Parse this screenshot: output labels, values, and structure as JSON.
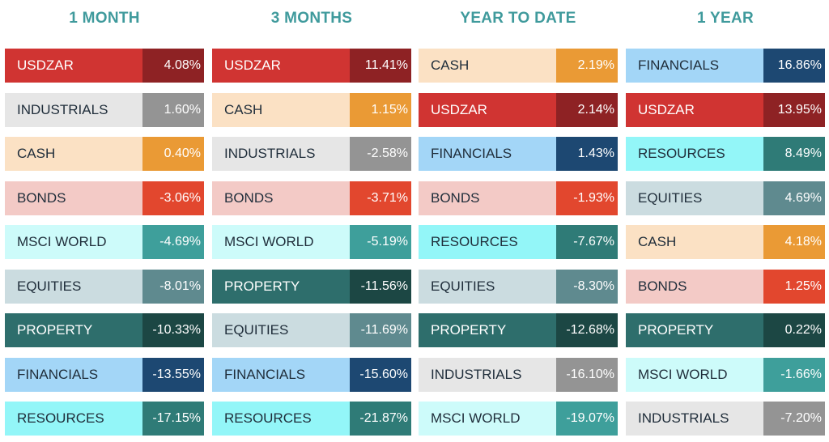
{
  "chart_data": {
    "type": "table",
    "title": "",
    "columns": [
      {
        "header": "1 MONTH",
        "rows": [
          {
            "label": "USDZAR",
            "value": "4.08%",
            "num": 4.08
          },
          {
            "label": "INDUSTRIALS",
            "value": "1.60%",
            "num": 1.6
          },
          {
            "label": "CASH",
            "value": "0.40%",
            "num": 0.4
          },
          {
            "label": "BONDS",
            "value": "-3.06%",
            "num": -3.06
          },
          {
            "label": "MSCI WORLD",
            "value": "-4.69%",
            "num": -4.69
          },
          {
            "label": "EQUITIES",
            "value": "-8.01%",
            "num": -8.01
          },
          {
            "label": "PROPERTY",
            "value": "-10.33%",
            "num": -10.33
          },
          {
            "label": "FINANCIALS",
            "value": "-13.55%",
            "num": -13.55
          },
          {
            "label": "RESOURCES",
            "value": "-17.15%",
            "num": -17.15
          }
        ]
      },
      {
        "header": "3 MONTHS",
        "rows": [
          {
            "label": "USDZAR",
            "value": "11.41%",
            "num": 11.41
          },
          {
            "label": "CASH",
            "value": "1.15%",
            "num": 1.15
          },
          {
            "label": "INDUSTRIALS",
            "value": "-2.58%",
            "num": -2.58
          },
          {
            "label": "BONDS",
            "value": "-3.71%",
            "num": -3.71
          },
          {
            "label": "MSCI WORLD",
            "value": "-5.19%",
            "num": -5.19
          },
          {
            "label": "PROPERTY",
            "value": "-11.56%",
            "num": -11.56
          },
          {
            "label": "EQUITIES",
            "value": "-11.69%",
            "num": -11.69
          },
          {
            "label": "FINANCIALS",
            "value": "-15.60%",
            "num": -15.6
          },
          {
            "label": "RESOURCES",
            "value": "-21.87%",
            "num": -21.87
          }
        ]
      },
      {
        "header": "YEAR TO DATE",
        "rows": [
          {
            "label": "CASH",
            "value": "2.19%",
            "num": 2.19
          },
          {
            "label": "USDZAR",
            "value": "2.14%",
            "num": 2.14
          },
          {
            "label": "FINANCIALS",
            "value": "1.43%",
            "num": 1.43
          },
          {
            "label": "BONDS",
            "value": "-1.93%",
            "num": -1.93
          },
          {
            "label": "RESOURCES",
            "value": "-7.67%",
            "num": -7.67
          },
          {
            "label": "EQUITIES",
            "value": "-8.30%",
            "num": -8.3
          },
          {
            "label": "PROPERTY",
            "value": "-12.68%",
            "num": -12.68
          },
          {
            "label": "INDUSTRIALS",
            "value": "-16.10%",
            "num": -16.1
          },
          {
            "label": "MSCI WORLD",
            "value": "-19.07%",
            "num": -19.07
          }
        ]
      },
      {
        "header": "1 YEAR",
        "rows": [
          {
            "label": "FINANCIALS",
            "value": "16.86%",
            "num": 16.86
          },
          {
            "label": "USDZAR",
            "value": "13.95%",
            "num": 13.95
          },
          {
            "label": "RESOURCES",
            "value": "8.49%",
            "num": 8.49
          },
          {
            "label": "EQUITIES",
            "value": "4.69%",
            "num": 4.69
          },
          {
            "label": "CASH",
            "value": "4.18%",
            "num": 4.18
          },
          {
            "label": "BONDS",
            "value": "1.25%",
            "num": 1.25
          },
          {
            "label": "PROPERTY",
            "value": "0.22%",
            "num": 0.22
          },
          {
            "label": "MSCI WORLD",
            "value": "-1.66%",
            "num": -1.66
          },
          {
            "label": "INDUSTRIALS",
            "value": "-7.20%",
            "num": -7.2
          }
        ]
      }
    ]
  },
  "colors": {
    "header_text": "#3f9a9c",
    "assets": {
      "USDZAR": {
        "label_bg": "#d03432",
        "value_bg": "#8e2224",
        "label_text": "#ffffff"
      },
      "INDUSTRIALS": {
        "label_bg": "#e6e6e6",
        "value_bg": "#949494",
        "label_text": "#1f2d3a"
      },
      "CASH": {
        "label_bg": "#fbe1c4",
        "value_bg": "#ea9a35",
        "label_text": "#1f2d3a"
      },
      "BONDS": {
        "label_bg": "#f3cac6",
        "value_bg": "#e2472e",
        "label_text": "#1f2d3a"
      },
      "MSCI WORLD": {
        "label_bg": "#cdfbfa",
        "value_bg": "#3e9f9b",
        "label_text": "#1f2d3a"
      },
      "EQUITIES": {
        "label_bg": "#cbdce0",
        "value_bg": "#5f8a8f",
        "label_text": "#1f2d3a"
      },
      "PROPERTY": {
        "label_bg": "#2e6e6c",
        "value_bg": "#1c4744",
        "label_text": "#ffffff"
      },
      "FINANCIALS": {
        "label_bg": "#a3d6f7",
        "value_bg": "#1d4872",
        "label_text": "#1f2d3a"
      },
      "RESOURCES": {
        "label_bg": "#93f6f8",
        "value_bg": "#2f7b77",
        "label_text": "#1f2d3a"
      }
    }
  }
}
